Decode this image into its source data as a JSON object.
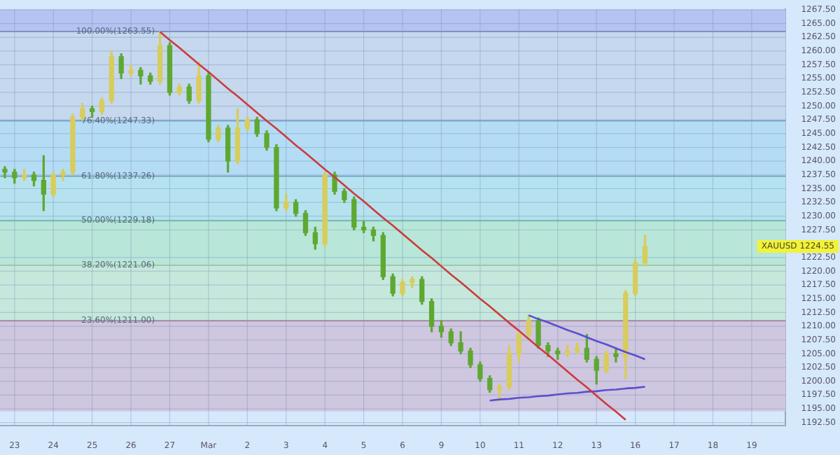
{
  "chart_data": {
    "type": "candlestick",
    "categories": [
      null,
      "23",
      null,
      null,
      null,
      "24",
      null,
      null,
      null,
      "25",
      null,
      null,
      null,
      "26",
      null,
      null,
      null,
      "27",
      null,
      null,
      null,
      "Mar",
      null,
      null,
      null,
      "2",
      null,
      null,
      null,
      "3",
      null,
      null,
      null,
      "4",
      null,
      null,
      null,
      "5",
      null,
      null,
      null,
      "6",
      null,
      null,
      null,
      "9",
      null,
      null,
      null,
      "10",
      null,
      null,
      null,
      "11",
      null,
      null,
      null,
      "12",
      null,
      null,
      null,
      "13",
      null,
      null,
      null,
      "16",
      null,
      null,
      null,
      "17",
      null,
      null,
      null,
      "18",
      null,
      null,
      null,
      "19",
      null,
      null,
      null
    ],
    "ohlc": [
      [
        1238.5,
        1239,
        1237,
        1238
      ],
      [
        1238,
        1238.5,
        1236,
        1237
      ],
      [
        1237,
        1238.5,
        1236.5,
        1237.5
      ],
      [
        1237.5,
        1238,
        1235.5,
        1236.5
      ],
      [
        1236.5,
        1241,
        1231,
        1234
      ],
      [
        1234,
        1238,
        1233.5,
        1237.5
      ],
      [
        1237.5,
        1238.5,
        1236.5,
        1238
      ],
      [
        1238,
        1248.5,
        1237.5,
        1248
      ],
      [
        1248,
        1250.5,
        1247.5,
        1249.5
      ],
      [
        1249.5,
        1250,
        1248,
        1249
      ],
      [
        1249,
        1251.5,
        1248.5,
        1251
      ],
      [
        1251,
        1260,
        1250.5,
        1259
      ],
      [
        1259,
        1259.5,
        1255,
        1256
      ],
      [
        1256,
        1257.5,
        1255.5,
        1256.5
      ],
      [
        1256.5,
        1257,
        1254,
        1255.5
      ],
      [
        1255.5,
        1256,
        1254,
        1254.5
      ],
      [
        1254.5,
        1263.5,
        1254,
        1261
      ],
      [
        1261,
        1261.5,
        1252,
        1252.5
      ],
      [
        1252.5,
        1254,
        1252,
        1253.5
      ],
      [
        1253.5,
        1254,
        1250.5,
        1251
      ],
      [
        1251,
        1258,
        1250.5,
        1255.5
      ],
      [
        1255.5,
        1256,
        1243.5,
        1244
      ],
      [
        1244,
        1246.5,
        1243.5,
        1246
      ],
      [
        1246,
        1246.5,
        1238,
        1240
      ],
      [
        1240,
        1249.5,
        1239.5,
        1246
      ],
      [
        1246,
        1248,
        1245.5,
        1247.5
      ],
      [
        1247.5,
        1248,
        1244.5,
        1245
      ],
      [
        1245,
        1245.5,
        1242,
        1242.5
      ],
      [
        1242.5,
        1243,
        1231,
        1231.5
      ],
      [
        1231.5,
        1234,
        1231,
        1232.5
      ],
      [
        1232.5,
        1233,
        1230,
        1230.5
      ],
      [
        1230.5,
        1231,
        1226.5,
        1227
      ],
      [
        1227,
        1228,
        1224,
        1225
      ],
      [
        1225,
        1238,
        1224.5,
        1237.5
      ],
      [
        1237.5,
        1238,
        1234,
        1234.5
      ],
      [
        1234.5,
        1235,
        1232.5,
        1233
      ],
      [
        1233,
        1233.5,
        1227.5,
        1228
      ],
      [
        1228,
        1229,
        1227,
        1227.5
      ],
      [
        1227.5,
        1228,
        1225.5,
        1226.5
      ],
      [
        1226.5,
        1227,
        1218.5,
        1219
      ],
      [
        1219,
        1219.5,
        1215.5,
        1216
      ],
      [
        1216,
        1218.5,
        1215.5,
        1218
      ],
      [
        1218,
        1219,
        1217,
        1218.5
      ],
      [
        1218.5,
        1219,
        1214,
        1214.5
      ],
      [
        1214.5,
        1215,
        1209,
        1210
      ],
      [
        1210,
        1211,
        1208,
        1209
      ],
      [
        1209,
        1209.5,
        1206.5,
        1207
      ],
      [
        1207,
        1209,
        1205,
        1205.5
      ],
      [
        1205.5,
        1206,
        1202.5,
        1203
      ],
      [
        1203,
        1203.5,
        1200,
        1200.5
      ],
      [
        1200.5,
        1201,
        1198,
        1198.5
      ],
      [
        1198.5,
        1199.5,
        1196.5,
        1199
      ],
      [
        1199,
        1206.5,
        1198.5,
        1205
      ],
      [
        1205,
        1209,
        1203.5,
        1208.5
      ],
      [
        1208.5,
        1212,
        1208,
        1211
      ],
      [
        1211,
        1211.5,
        1206,
        1206.5
      ],
      [
        1206.5,
        1207,
        1204.5,
        1205.5
      ],
      [
        1205.5,
        1206,
        1204,
        1205
      ],
      [
        1205,
        1206.5,
        1204.5,
        1205.5
      ],
      [
        1205.5,
        1207,
        1205,
        1206
      ],
      [
        1206,
        1208.5,
        1203.5,
        1204
      ],
      [
        1204,
        1204.5,
        1199.5,
        1202
      ],
      [
        1202,
        1205.5,
        1201.5,
        1205
      ],
      [
        1205,
        1206,
        1203.5,
        1204.5
      ],
      [
        1204.5,
        1216.5,
        1200.5,
        1216
      ],
      [
        1216,
        1222,
        1215.5,
        1221.5
      ],
      [
        1221.5,
        1226.5,
        1221,
        1224.5
      ],
      null,
      null,
      null,
      null,
      null,
      null,
      null,
      null,
      null,
      null,
      null,
      null,
      null,
      null
    ],
    "colors": [
      "#5ea832",
      "#5ea832",
      "#d8cc5c",
      "#5ea832",
      "#5ea832",
      "#d8cc5c",
      "#d8cc5c",
      "#d8cc5c",
      "#d8cc5c",
      "#5ea832",
      "#d8cc5c",
      "#d8cc5c",
      "#5ea832",
      "#d8cc5c",
      "#5ea832",
      "#5ea832",
      "#d8cc5c",
      "#5ea832",
      "#d8cc5c",
      "#5ea832",
      "#d8cc5c",
      "#5ea832",
      "#d8cc5c",
      "#5ea832",
      "#d8cc5c",
      "#d8cc5c",
      "#5ea832",
      "#5ea832",
      "#5ea832",
      "#d8cc5c",
      "#5ea832",
      "#5ea832",
      "#5ea832",
      "#d8cc5c",
      "#5ea832",
      "#5ea832",
      "#5ea832",
      "#5ea832",
      "#5ea832",
      "#5ea832",
      "#5ea832",
      "#d8cc5c",
      "#d8cc5c",
      "#5ea832",
      "#5ea832",
      "#5ea832",
      "#5ea832",
      "#5ea832",
      "#5ea832",
      "#5ea832",
      "#5ea832",
      "#d8cc5c",
      "#d8cc5c",
      "#d8cc5c",
      "#d8cc5c",
      "#5ea832",
      "#5ea832",
      "#5ea832",
      "#d8cc5c",
      "#d8cc5c",
      "#5ea832",
      "#5ea832",
      "#d8cc5c",
      "#5ea832",
      "#d8cc5c",
      "#d8cc5c",
      "#d8cc5c",
      null,
      null,
      null,
      null,
      null,
      null,
      null,
      null,
      null,
      null,
      null,
      null,
      null,
      null
    ],
    "series": [
      {
        "type": "line",
        "color": "#cc3b3b",
        "values": [
          null,
          null,
          null,
          null,
          null,
          null,
          null,
          null,
          null,
          null,
          null,
          null,
          null,
          null,
          null,
          null,
          1263.5,
          1262.0,
          1260.6,
          1259.1,
          1257.6,
          1256.2,
          1254.7,
          1253.2,
          1251.8,
          1250.3,
          1248.8,
          1247.3,
          1245.9,
          1244.4,
          1242.9,
          1241.5,
          1240.0,
          1238.5,
          1237.1,
          1235.6,
          1234.1,
          1232.7,
          1231.2,
          1229.7,
          1228.3,
          1226.8,
          1225.3,
          1223.8,
          1222.4,
          1220.9,
          1219.4,
          1218.0,
          1216.5,
          1215.0,
          1213.6,
          1212.1,
          1210.6,
          1209.2,
          1207.7,
          1206.2,
          1204.8,
          1203.3,
          1201.8,
          1200.3,
          1198.9,
          1197.4,
          1195.9,
          1194.5,
          1193.0,
          null,
          null,
          null,
          null,
          null,
          null,
          null,
          null,
          null,
          null,
          null,
          null,
          null,
          null,
          null,
          null
        ]
      },
      {
        "type": "line",
        "color": "#5a4fd0",
        "values": [
          null,
          null,
          null,
          null,
          null,
          null,
          null,
          null,
          null,
          null,
          null,
          null,
          null,
          null,
          null,
          null,
          null,
          null,
          null,
          null,
          null,
          null,
          null,
          null,
          null,
          null,
          null,
          null,
          null,
          null,
          null,
          null,
          null,
          null,
          null,
          null,
          null,
          null,
          null,
          null,
          null,
          null,
          null,
          null,
          null,
          null,
          null,
          null,
          null,
          null,
          null,
          null,
          null,
          null,
          1212,
          1211.3,
          1210.7,
          1210,
          1209.3,
          1208.7,
          1208,
          1207.3,
          1206.7,
          1206,
          1205.3,
          1204.7,
          1204,
          null,
          null,
          null,
          null,
          null,
          null,
          null,
          null,
          null,
          null,
          null,
          null,
          null,
          null
        ]
      },
      {
        "type": "line",
        "color": "#5a4fd0",
        "values": [
          null,
          null,
          null,
          null,
          null,
          null,
          null,
          null,
          null,
          null,
          null,
          null,
          null,
          null,
          null,
          null,
          null,
          null,
          null,
          null,
          null,
          null,
          null,
          null,
          null,
          null,
          null,
          null,
          null,
          null,
          null,
          null,
          null,
          null,
          null,
          null,
          null,
          null,
          null,
          null,
          null,
          null,
          null,
          null,
          null,
          null,
          null,
          null,
          null,
          null,
          1196.5,
          1196.7,
          1196.8,
          1197.0,
          1197.1,
          1197.3,
          1197.4,
          1197.6,
          1197.8,
          1197.9,
          1198.1,
          1198.2,
          1198.4,
          1198.5,
          1198.7,
          1198.8,
          1199.0,
          null,
          null,
          null,
          null,
          null,
          null,
          null,
          null,
          null,
          null,
          null,
          null,
          null,
          null
        ]
      }
    ],
    "ylim": [
      1192,
      1267.6
    ],
    "yticks": [
      {
        "value": 1192.5,
        "label": "1192.50"
      },
      {
        "value": 1195,
        "label": "1195.00"
      },
      {
        "value": 1197.5,
        "label": "1197.50"
      },
      {
        "value": 1200,
        "label": "1200.00"
      },
      {
        "value": 1202.5,
        "label": "1202.50"
      },
      {
        "value": 1205,
        "label": "1205.00"
      },
      {
        "value": 1207.5,
        "label": "1207.50"
      },
      {
        "value": 1210,
        "label": "1210.00"
      },
      {
        "value": 1212.5,
        "label": "1212.50"
      },
      {
        "value": 1215,
        "label": "1215.00"
      },
      {
        "value": 1217.5,
        "label": "1217.50"
      },
      {
        "value": 1220,
        "label": "1220.00"
      },
      {
        "value": 1222.5,
        "label": "1222.50"
      },
      {
        "value": 1227.5,
        "label": "1227.50"
      },
      {
        "value": 1230,
        "label": "1230.00"
      },
      {
        "value": 1232.5,
        "label": "1232.50"
      },
      {
        "value": 1235,
        "label": "1235.00"
      },
      {
        "value": 1237.5,
        "label": "1237.50"
      },
      {
        "value": 1240,
        "label": "1240.00"
      },
      {
        "value": 1242.5,
        "label": "1242.50"
      },
      {
        "value": 1245,
        "label": "1245.00"
      },
      {
        "value": 1247.5,
        "label": "1247.50"
      },
      {
        "value": 1250,
        "label": "1250.00"
      },
      {
        "value": 1252.5,
        "label": "1252.50"
      },
      {
        "value": 1255,
        "label": "1255.00"
      },
      {
        "value": 1257.5,
        "label": "1257.50"
      },
      {
        "value": 1260,
        "label": "1260.00"
      },
      {
        "value": 1262.5,
        "label": "1262.50"
      },
      {
        "value": 1265,
        "label": "1265.00"
      },
      {
        "value": 1267.5,
        "label": "1267.50"
      }
    ],
    "bands": [
      {
        "axis": "y",
        "from": 1263.55,
        "to": 1267.6,
        "color": "#b4c3f2"
      },
      {
        "axis": "y",
        "from": 1247.33,
        "to": 1263.55,
        "color": "#c5d8ee"
      },
      {
        "axis": "y",
        "from": 1237.26,
        "to": 1247.33,
        "color": "#b5dcf5"
      },
      {
        "axis": "y",
        "from": 1229.18,
        "to": 1237.26,
        "color": "#b5e2ee"
      },
      {
        "axis": "y",
        "from": 1221.06,
        "to": 1229.18,
        "color": "#b8e6d9"
      },
      {
        "axis": "y",
        "from": 1211,
        "to": 1221.06,
        "color": "#c6e8dc"
      },
      {
        "axis": "y",
        "from": 1194.55,
        "to": 1211,
        "color": "#cfc6e0"
      }
    ],
    "ref_lines": [
      {
        "axis": "y",
        "value": 1263.55,
        "label": "100.00%(1263.55)",
        "color": "#8090c0"
      },
      {
        "axis": "y",
        "value": 1247.33,
        "label": "76.40%(1247.33)",
        "color": "#7aa0c8"
      },
      {
        "axis": "y",
        "value": 1237.26,
        "label": "61.80%(1237.26)",
        "color": "#78aac8"
      },
      {
        "axis": "y",
        "value": 1229.18,
        "label": "50.00%(1229.18)",
        "color": "#70b8a8"
      },
      {
        "axis": "y",
        "value": 1221.06,
        "label": "38.20%(1221.06)",
        "color": "#a0c8a8"
      },
      {
        "axis": "y",
        "value": 1211,
        "label": "23.60%(1211.00)",
        "color": "#a08aa0"
      }
    ],
    "annotations": [
      "XAUUSD 1224.55"
    ],
    "grid": true,
    "legend": false
  }
}
